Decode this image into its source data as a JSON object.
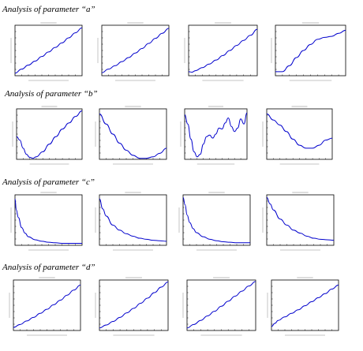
{
  "sections": [
    {
      "title": "Analysis of parameter “a”"
    },
    {
      "title": "Analysis of parameter “b”"
    },
    {
      "title": "Analysis of parameter “c”"
    },
    {
      "title": "Analysis of parameter “d”"
    }
  ],
  "colors": {
    "curve": "#0000cc",
    "frame": "#000000",
    "background": "#ffffff"
  },
  "chart_data": [
    {
      "type": "line",
      "section": "a",
      "panel": 1,
      "xlim": [
        0,
        1
      ],
      "ylim": [
        0,
        1
      ],
      "tick_labels": "unreadable",
      "title": "",
      "xlabel": "",
      "ylabel": "",
      "x": [
        0,
        0.1,
        0.2,
        0.3,
        0.4,
        0.5,
        0.6,
        0.7,
        0.8,
        0.9,
        1.0
      ],
      "y": [
        0.05,
        0.13,
        0.21,
        0.29,
        0.38,
        0.47,
        0.56,
        0.65,
        0.75,
        0.85,
        0.95
      ]
    },
    {
      "type": "line",
      "section": "a",
      "panel": 2,
      "xlim": [
        0,
        1
      ],
      "ylim": [
        0,
        1
      ],
      "tick_labels": "unreadable",
      "title": "",
      "xlabel": "",
      "ylabel": "",
      "x": [
        0,
        0.1,
        0.2,
        0.3,
        0.4,
        0.5,
        0.6,
        0.7,
        0.8,
        0.9,
        1.0
      ],
      "y": [
        0.06,
        0.13,
        0.2,
        0.28,
        0.36,
        0.45,
        0.54,
        0.64,
        0.74,
        0.84,
        0.94
      ]
    },
    {
      "type": "line",
      "section": "a",
      "panel": 3,
      "xlim": [
        0,
        1
      ],
      "ylim": [
        0,
        1
      ],
      "tick_labels": "unreadable",
      "title": "",
      "xlabel": "",
      "ylabel": "",
      "x": [
        0,
        0.05,
        0.1,
        0.2,
        0.3,
        0.4,
        0.5,
        0.6,
        0.7,
        0.8,
        0.9,
        1.0
      ],
      "y": [
        0.08,
        0.07,
        0.1,
        0.16,
        0.23,
        0.31,
        0.4,
        0.5,
        0.6,
        0.7,
        0.8,
        0.92
      ]
    },
    {
      "type": "line",
      "section": "a",
      "panel": 4,
      "xlim": [
        0,
        1
      ],
      "ylim": [
        0,
        1
      ],
      "tick_labels": "unreadable",
      "title": "",
      "xlabel": "",
      "ylabel": "",
      "x": [
        0,
        0.1,
        0.2,
        0.3,
        0.4,
        0.5,
        0.6,
        0.7,
        0.8,
        0.9,
        1.0
      ],
      "y": [
        0.08,
        0.08,
        0.2,
        0.36,
        0.5,
        0.62,
        0.72,
        0.76,
        0.78,
        0.84,
        0.9
      ]
    },
    {
      "type": "line",
      "section": "b",
      "panel": 1,
      "xlim": [
        0,
        1
      ],
      "ylim": [
        0,
        1
      ],
      "tick_labels": "unreadable",
      "title": "",
      "xlabel": "",
      "ylabel": "",
      "x": [
        0,
        0.05,
        0.1,
        0.15,
        0.2,
        0.25,
        0.3,
        0.4,
        0.5,
        0.6,
        0.7,
        0.8,
        0.9,
        1.0
      ],
      "y": [
        0.45,
        0.38,
        0.22,
        0.1,
        0.04,
        0.02,
        0.05,
        0.15,
        0.3,
        0.45,
        0.6,
        0.72,
        0.85,
        0.96
      ]
    },
    {
      "type": "line",
      "section": "b",
      "panel": 2,
      "xlim": [
        0,
        1
      ],
      "ylim": [
        0,
        1
      ],
      "tick_labels": "unreadable",
      "title": "",
      "xlabel": "",
      "ylabel": "",
      "x": [
        0,
        0.1,
        0.2,
        0.3,
        0.4,
        0.5,
        0.6,
        0.7,
        0.8,
        0.9,
        1.0
      ],
      "y": [
        0.9,
        0.7,
        0.5,
        0.32,
        0.18,
        0.08,
        0.02,
        0.02,
        0.05,
        0.12,
        0.22
      ]
    },
    {
      "type": "line",
      "section": "b",
      "panel": 3,
      "xlim": [
        0,
        1
      ],
      "ylim": [
        0,
        1
      ],
      "tick_labels": "unreadable",
      "title": "",
      "xlabel": "",
      "ylabel": "",
      "x": [
        0,
        0.05,
        0.1,
        0.15,
        0.2,
        0.25,
        0.3,
        0.35,
        0.4,
        0.45,
        0.5,
        0.55,
        0.6,
        0.65,
        0.7,
        0.75,
        0.8,
        0.85,
        0.9,
        0.95,
        1.0
      ],
      "y": [
        0.88,
        0.7,
        0.4,
        0.15,
        0.05,
        0.1,
        0.3,
        0.45,
        0.48,
        0.42,
        0.5,
        0.62,
        0.6,
        0.72,
        0.82,
        0.65,
        0.55,
        0.62,
        0.8,
        0.7,
        0.92
      ]
    },
    {
      "type": "line",
      "section": "b",
      "panel": 4,
      "xlim": [
        0,
        1
      ],
      "ylim": [
        0,
        1
      ],
      "tick_labels": "unreadable",
      "title": "",
      "xlabel": "",
      "ylabel": "",
      "x": [
        0,
        0.1,
        0.2,
        0.3,
        0.4,
        0.5,
        0.6,
        0.7,
        0.8,
        0.9,
        1.0
      ],
      "y": [
        0.9,
        0.78,
        0.68,
        0.55,
        0.4,
        0.28,
        0.22,
        0.22,
        0.28,
        0.38,
        0.42
      ]
    },
    {
      "type": "line",
      "section": "c",
      "panel": 1,
      "xlim": [
        0,
        1
      ],
      "ylim": [
        0,
        1
      ],
      "tick_labels": "unreadable",
      "title": "",
      "xlabel": "",
      "ylabel": "",
      "x": [
        0,
        0.02,
        0.05,
        0.1,
        0.15,
        0.2,
        0.3,
        0.4,
        0.5,
        0.6,
        0.7,
        0.8,
        0.9,
        1.0
      ],
      "y": [
        0.92,
        0.7,
        0.55,
        0.35,
        0.24,
        0.17,
        0.11,
        0.08,
        0.06,
        0.05,
        0.04,
        0.04,
        0.04,
        0.04
      ]
    },
    {
      "type": "line",
      "section": "c",
      "panel": 2,
      "xlim": [
        0,
        1
      ],
      "ylim": [
        0,
        1
      ],
      "tick_labels": "unreadable",
      "title": "",
      "xlabel": "",
      "ylabel": "",
      "x": [
        0,
        0.05,
        0.1,
        0.2,
        0.3,
        0.4,
        0.5,
        0.6,
        0.7,
        0.8,
        0.9,
        1.0
      ],
      "y": [
        0.92,
        0.72,
        0.58,
        0.4,
        0.3,
        0.23,
        0.18,
        0.14,
        0.12,
        0.1,
        0.09,
        0.08
      ]
    },
    {
      "type": "line",
      "section": "c",
      "panel": 3,
      "xlim": [
        0,
        1
      ],
      "ylim": [
        0,
        1
      ],
      "tick_labels": "unreadable",
      "title": "",
      "xlabel": "",
      "ylabel": "",
      "x": [
        0,
        0.03,
        0.06,
        0.1,
        0.15,
        0.2,
        0.3,
        0.4,
        0.5,
        0.6,
        0.7,
        0.8,
        0.9,
        1.0
      ],
      "y": [
        0.95,
        0.8,
        0.6,
        0.45,
        0.33,
        0.25,
        0.17,
        0.12,
        0.09,
        0.07,
        0.06,
        0.05,
        0.05,
        0.05
      ]
    },
    {
      "type": "line",
      "section": "c",
      "panel": 4,
      "xlim": [
        0,
        1
      ],
      "ylim": [
        0,
        1
      ],
      "tick_labels": "unreadable",
      "title": "",
      "xlabel": "",
      "ylabel": "",
      "x": [
        0,
        0.05,
        0.1,
        0.2,
        0.3,
        0.4,
        0.5,
        0.6,
        0.7,
        0.8,
        0.9,
        1.0
      ],
      "y": [
        0.95,
        0.82,
        0.7,
        0.52,
        0.4,
        0.3,
        0.24,
        0.18,
        0.14,
        0.12,
        0.11,
        0.1
      ]
    },
    {
      "type": "line",
      "section": "d",
      "panel": 1,
      "xlim": [
        0,
        1
      ],
      "ylim": [
        0,
        1
      ],
      "tick_labels": "unreadable",
      "title": "",
      "xlabel": "",
      "ylabel": "",
      "x": [
        0,
        0.1,
        0.2,
        0.3,
        0.4,
        0.5,
        0.6,
        0.7,
        0.8,
        0.9,
        1.0
      ],
      "y": [
        0.06,
        0.12,
        0.19,
        0.26,
        0.34,
        0.42,
        0.51,
        0.6,
        0.7,
        0.8,
        0.9
      ]
    },
    {
      "type": "line",
      "section": "d",
      "panel": 2,
      "xlim": [
        0,
        1
      ],
      "ylim": [
        0,
        1
      ],
      "tick_labels": "unreadable",
      "title": "",
      "xlabel": "",
      "ylabel": "",
      "x": [
        0,
        0.1,
        0.2,
        0.3,
        0.4,
        0.5,
        0.6,
        0.7,
        0.8,
        0.9,
        1.0
      ],
      "y": [
        0.05,
        0.11,
        0.18,
        0.26,
        0.35,
        0.44,
        0.54,
        0.64,
        0.75,
        0.86,
        0.96
      ]
    },
    {
      "type": "line",
      "section": "d",
      "panel": 3,
      "xlim": [
        0,
        1
      ],
      "ylim": [
        0,
        1
      ],
      "tick_labels": "unreadable",
      "title": "",
      "xlabel": "",
      "ylabel": "",
      "x": [
        0,
        0.1,
        0.2,
        0.3,
        0.4,
        0.5,
        0.6,
        0.7,
        0.8,
        0.9,
        1.0
      ],
      "y": [
        0.05,
        0.12,
        0.2,
        0.29,
        0.38,
        0.48,
        0.58,
        0.68,
        0.78,
        0.88,
        0.97
      ]
    },
    {
      "type": "line",
      "section": "d",
      "panel": 4,
      "xlim": [
        0,
        1
      ],
      "ylim": [
        0,
        1
      ],
      "tick_labels": "unreadable",
      "title": "",
      "xlabel": "",
      "ylabel": "",
      "x": [
        0,
        0.05,
        0.1,
        0.2,
        0.3,
        0.4,
        0.5,
        0.6,
        0.7,
        0.8,
        0.9,
        1.0
      ],
      "y": [
        0.08,
        0.14,
        0.2,
        0.27,
        0.34,
        0.41,
        0.49,
        0.57,
        0.65,
        0.73,
        0.82,
        0.9
      ]
    }
  ]
}
